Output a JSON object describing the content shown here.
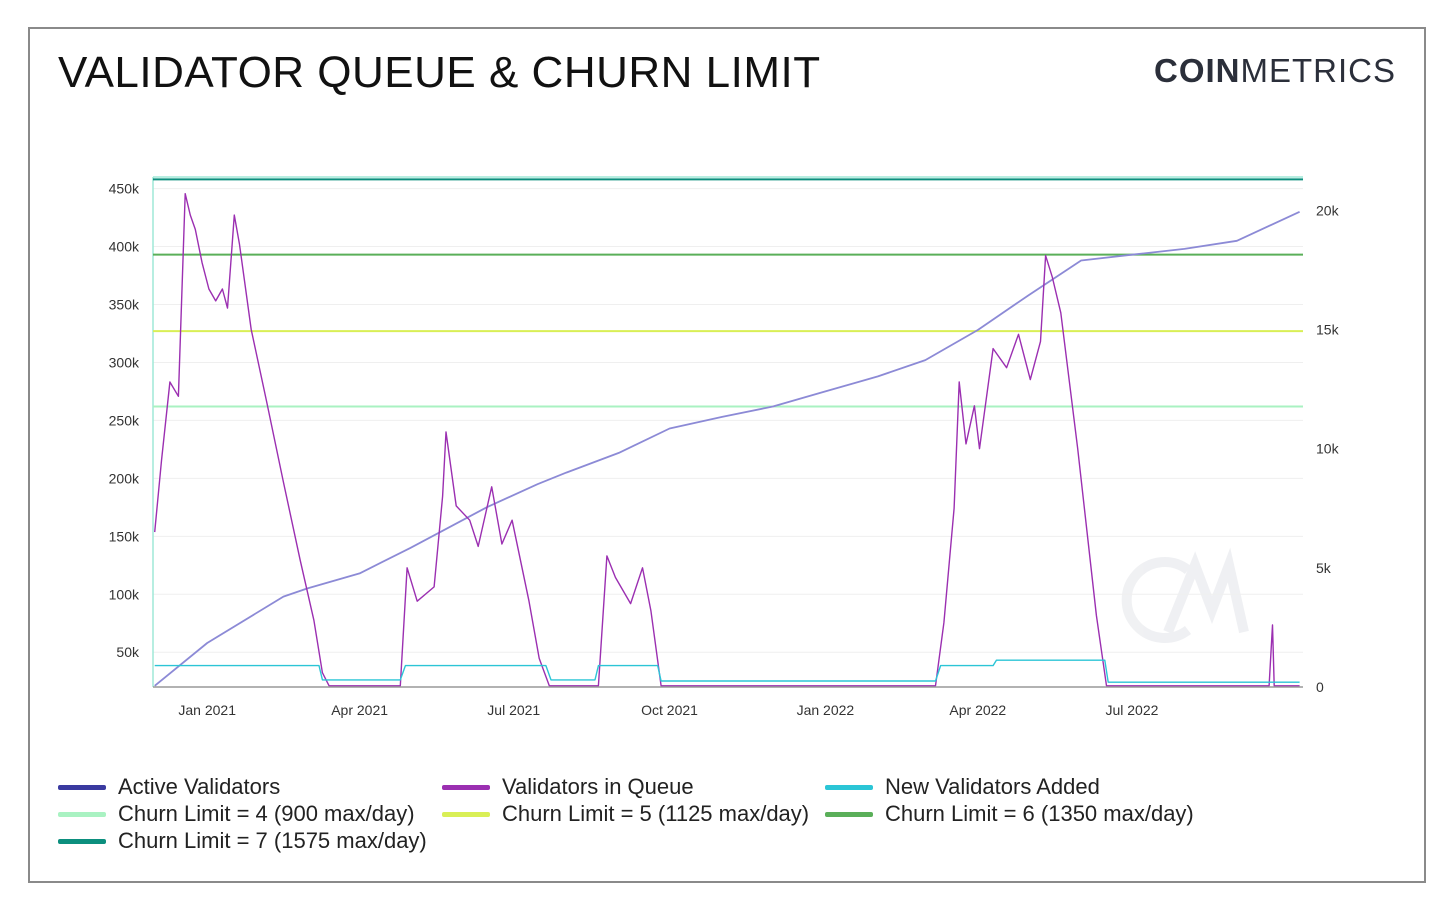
{
  "header": {
    "title": "VALIDATOR QUEUE & CHURN LIMIT",
    "brand_bold": "COIN",
    "brand_light": "METRICS"
  },
  "colors": {
    "active": "#8c8ad6",
    "queue": "#9b2fb1",
    "new": "#2bc5d6",
    "churn4": "#a9f2c2",
    "churn5": "#d9ef56",
    "churn6": "#5aaf59",
    "churn7": "#0c8f7e",
    "axis": "#999999",
    "grid": "#efefef",
    "frame_top": "#9fe8d7"
  },
  "chart_data": {
    "type": "line",
    "x_ticks": [
      "Jan 2021",
      "Apr 2021",
      "Jul 2021",
      "Oct 2021",
      "Jan 2022",
      "Apr 2022",
      "Jul 2022"
    ],
    "y_left_ticks": [
      "50k",
      "100k",
      "150k",
      "200k",
      "250k",
      "300k",
      "350k",
      "400k",
      "450k"
    ],
    "y_left_range": [
      20000,
      460000
    ],
    "y_right_ticks": [
      "0",
      "5k",
      "10k",
      "15k",
      "20k"
    ],
    "y_right_range": [
      0,
      21400
    ],
    "x_range": [
      "2020-11-30",
      "2022-10-10"
    ],
    "series": [
      {
        "key": "active",
        "name": "Active Validators",
        "axis": "left",
        "points": [
          [
            "2020-12-01",
            21000
          ],
          [
            "2021-01-01",
            58000
          ],
          [
            "2021-02-15",
            98000
          ],
          [
            "2021-03-01",
            105000
          ],
          [
            "2021-04-01",
            118000
          ],
          [
            "2021-05-01",
            140000
          ],
          [
            "2021-06-15",
            175000
          ],
          [
            "2021-07-15",
            195000
          ],
          [
            "2021-08-01",
            205000
          ],
          [
            "2021-09-01",
            222000
          ],
          [
            "2021-10-01",
            243000
          ],
          [
            "2021-11-01",
            253000
          ],
          [
            "2021-12-01",
            262000
          ],
          [
            "2022-01-01",
            275000
          ],
          [
            "2022-02-01",
            288000
          ],
          [
            "2022-03-01",
            302000
          ],
          [
            "2022-04-01",
            328000
          ],
          [
            "2022-05-01",
            358000
          ],
          [
            "2022-06-01",
            388000
          ],
          [
            "2022-07-01",
            393000
          ],
          [
            "2022-08-01",
            398000
          ],
          [
            "2022-09-01",
            405000
          ],
          [
            "2022-10-08",
            430000
          ]
        ]
      },
      {
        "key": "queue",
        "name": "Validators in Queue",
        "axis": "right",
        "points": [
          [
            "2020-12-01",
            6500
          ],
          [
            "2020-12-05",
            9500
          ],
          [
            "2020-12-10",
            12800
          ],
          [
            "2020-12-15",
            12200
          ],
          [
            "2020-12-19",
            20700
          ],
          [
            "2020-12-22",
            19800
          ],
          [
            "2020-12-25",
            19200
          ],
          [
            "2020-12-29",
            17800
          ],
          [
            "2021-01-02",
            16700
          ],
          [
            "2021-01-06",
            16200
          ],
          [
            "2021-01-10",
            16700
          ],
          [
            "2021-01-13",
            15900
          ],
          [
            "2021-01-17",
            19800
          ],
          [
            "2021-01-20",
            18600
          ],
          [
            "2021-01-27",
            15000
          ],
          [
            "2021-02-05",
            12000
          ],
          [
            "2021-02-15",
            8600
          ],
          [
            "2021-02-25",
            5300
          ],
          [
            "2021-03-05",
            2800
          ],
          [
            "2021-03-10",
            600
          ],
          [
            "2021-03-14",
            50
          ],
          [
            "2021-04-25",
            50
          ],
          [
            "2021-04-29",
            5000
          ],
          [
            "2021-05-05",
            3600
          ],
          [
            "2021-05-15",
            4200
          ],
          [
            "2021-05-20",
            8000
          ],
          [
            "2021-05-22",
            10700
          ],
          [
            "2021-05-28",
            7600
          ],
          [
            "2021-06-05",
            7000
          ],
          [
            "2021-06-10",
            5900
          ],
          [
            "2021-06-18",
            8400
          ],
          [
            "2021-06-24",
            6000
          ],
          [
            "2021-06-30",
            7000
          ],
          [
            "2021-07-10",
            3600
          ],
          [
            "2021-07-16",
            1200
          ],
          [
            "2021-07-22",
            50
          ],
          [
            "2021-08-20",
            50
          ],
          [
            "2021-08-25",
            5500
          ],
          [
            "2021-08-30",
            4600
          ],
          [
            "2021-09-08",
            3500
          ],
          [
            "2021-09-15",
            5000
          ],
          [
            "2021-09-20",
            3200
          ],
          [
            "2021-09-26",
            50
          ],
          [
            "2022-03-07",
            50
          ],
          [
            "2022-03-12",
            2700
          ],
          [
            "2022-03-18",
            7500
          ],
          [
            "2022-03-21",
            12800
          ],
          [
            "2022-03-25",
            10200
          ],
          [
            "2022-03-30",
            11800
          ],
          [
            "2022-04-02",
            10000
          ],
          [
            "2022-04-10",
            14200
          ],
          [
            "2022-04-18",
            13400
          ],
          [
            "2022-04-25",
            14800
          ],
          [
            "2022-05-02",
            12900
          ],
          [
            "2022-05-08",
            14500
          ],
          [
            "2022-05-11",
            18100
          ],
          [
            "2022-05-15",
            17200
          ],
          [
            "2022-05-20",
            15700
          ],
          [
            "2022-05-30",
            10000
          ],
          [
            "2022-06-10",
            3000
          ],
          [
            "2022-06-16",
            50
          ],
          [
            "2022-09-20",
            50
          ],
          [
            "2022-09-22",
            2600
          ],
          [
            "2022-09-23",
            50
          ],
          [
            "2022-10-08",
            50
          ]
        ]
      },
      {
        "key": "new",
        "name": "New Validators Added",
        "axis": "right",
        "points": [
          [
            "2020-12-01",
            900
          ],
          [
            "2021-03-08",
            900
          ],
          [
            "2021-03-10",
            300
          ],
          [
            "2021-04-25",
            300
          ],
          [
            "2021-04-28",
            900
          ],
          [
            "2021-07-20",
            900
          ],
          [
            "2021-07-23",
            300
          ],
          [
            "2021-08-18",
            300
          ],
          [
            "2021-08-20",
            900
          ],
          [
            "2021-09-24",
            900
          ],
          [
            "2021-09-26",
            250
          ],
          [
            "2022-03-07",
            250
          ],
          [
            "2022-03-10",
            900
          ],
          [
            "2022-04-10",
            900
          ],
          [
            "2022-04-12",
            1125
          ],
          [
            "2022-06-15",
            1125
          ],
          [
            "2022-06-17",
            200
          ],
          [
            "2022-10-08",
            200
          ]
        ]
      }
    ],
    "churn_lines": [
      {
        "key": "churn4",
        "name": "Churn Limit = 4 (900 max/day)",
        "value": 262000
      },
      {
        "key": "churn5",
        "name": "Churn Limit = 5 (1125 max/day)",
        "value": 327000
      },
      {
        "key": "churn6",
        "name": "Churn Limit = 6 (1350 max/day)",
        "value": 393000
      },
      {
        "key": "churn7",
        "name": "Churn Limit = 7 (1575 max/day)",
        "value": 458000
      }
    ]
  },
  "legend": [
    {
      "key": "active",
      "label": "Active Validators"
    },
    {
      "key": "queue",
      "label": "Validators in Queue"
    },
    {
      "key": "new",
      "label": "New Validators Added"
    },
    {
      "key": "churn4",
      "label": "Churn Limit = 4 (900 max/day)"
    },
    {
      "key": "churn5",
      "label": "Churn Limit = 5 (1125 max/day)"
    },
    {
      "key": "churn6",
      "label": "Churn Limit = 6 (1350 max/day)"
    },
    {
      "key": "churn7",
      "label": "Churn Limit = 7 (1575 max/day)"
    }
  ]
}
